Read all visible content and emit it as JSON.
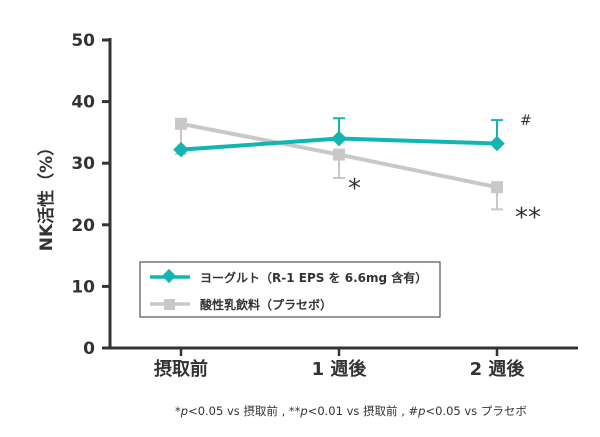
{
  "chart_data": {
    "type": "line",
    "ylabel": "NK活性（%）",
    "xlabel": "",
    "ylim": [
      0,
      50
    ],
    "yticks": [
      "0",
      "10",
      "20",
      "30",
      "40",
      "50"
    ],
    "categories": [
      "摂取前",
      "1 週後",
      "2 週後"
    ],
    "series": [
      {
        "name": "ヨーグルト（R-1 EPS を 6.6mg 含有）",
        "color": "#13b5b1",
        "marker": "diamond",
        "values": [
          32.2,
          34.0,
          33.2
        ],
        "error_upper": [
          null,
          37.3,
          37.0
        ]
      },
      {
        "name": "酸性乳飲料（プラセボ）",
        "color": "#c8c8c8",
        "marker": "square",
        "values": [
          36.4,
          31.4,
          26.1
        ],
        "error_lower": [
          31.5,
          27.6,
          22.5
        ]
      }
    ],
    "annotations": [
      "*",
      "**",
      "#"
    ],
    "legend": "bottom-left",
    "footnote": {
      "a": "*",
      "b": "p",
      "c": "<0.05 vs 摂取前 , **",
      "d": "p",
      "e": "<0.01 vs 摂取前 , #",
      "f": "p",
      "g": "<0.05 vs プラセボ"
    }
  }
}
